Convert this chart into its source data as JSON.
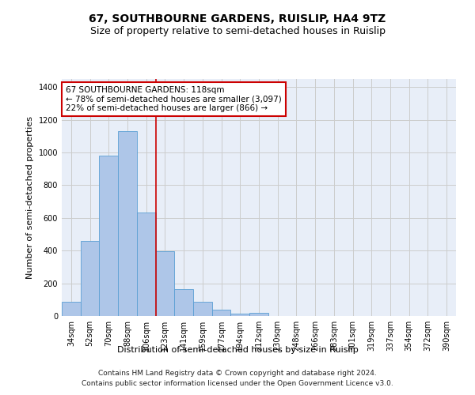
{
  "title": "67, SOUTHBOURNE GARDENS, RUISLIP, HA4 9TZ",
  "subtitle": "Size of property relative to semi-detached houses in Ruislip",
  "xlabel": "Distribution of semi-detached houses by size in Ruislip",
  "ylabel": "Number of semi-detached properties",
  "footnote1": "Contains HM Land Registry data © Crown copyright and database right 2024.",
  "footnote2": "Contains public sector information licensed under the Open Government Licence v3.0.",
  "annotation_line1": "67 SOUTHBOURNE GARDENS: 118sqm",
  "annotation_line2": "← 78% of semi-detached houses are smaller (3,097)",
  "annotation_line3": "22% of semi-detached houses are larger (866) →",
  "bar_labels": [
    "34sqm",
    "52sqm",
    "70sqm",
    "88sqm",
    "106sqm",
    "123sqm",
    "141sqm",
    "159sqm",
    "177sqm",
    "194sqm",
    "212sqm",
    "230sqm",
    "248sqm",
    "266sqm",
    "283sqm",
    "301sqm",
    "319sqm",
    "337sqm",
    "354sqm",
    "372sqm",
    "390sqm"
  ],
  "bar_values": [
    85,
    460,
    980,
    1130,
    635,
    395,
    165,
    85,
    40,
    15,
    20,
    0,
    0,
    0,
    0,
    0,
    0,
    0,
    0,
    0,
    0
  ],
  "bar_color": "#aec6e8",
  "bar_edge_color": "#5a9fd4",
  "red_line_x": 4.5,
  "ylim": [
    0,
    1450
  ],
  "yticks": [
    0,
    200,
    400,
    600,
    800,
    1000,
    1200,
    1400
  ],
  "grid_color": "#cccccc",
  "bg_color": "#e8eef8",
  "annotation_box_color": "#ffffff",
  "annotation_box_edge": "#cc0000",
  "red_line_color": "#cc0000",
  "title_fontsize": 10,
  "subtitle_fontsize": 9,
  "axis_label_fontsize": 8,
  "tick_fontsize": 7,
  "annotation_fontsize": 7.5,
  "footnote_fontsize": 6.5
}
